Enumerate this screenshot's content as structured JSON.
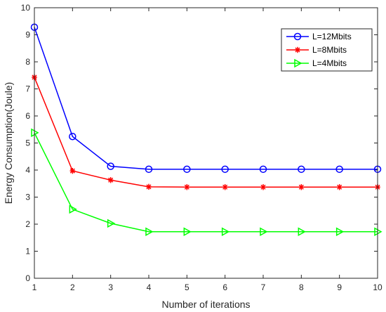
{
  "chart_data": {
    "type": "line",
    "title": "",
    "xlabel": "Number of iterations",
    "ylabel": "Energy Consumption(Joule)",
    "xlim": [
      1,
      10
    ],
    "ylim": [
      0,
      10
    ],
    "x_ticks": [
      1,
      2,
      3,
      4,
      5,
      6,
      7,
      8,
      9,
      10
    ],
    "y_ticks": [
      0,
      1,
      2,
      3,
      4,
      5,
      6,
      7,
      8,
      9,
      10
    ],
    "grid": false,
    "legend_position": "top-right",
    "x": [
      1,
      2,
      3,
      4,
      5,
      6,
      7,
      8,
      9,
      10
    ],
    "series": [
      {
        "name": "L=12Mbits",
        "color": "#0000ff",
        "marker": "circle",
        "values": [
          9.28,
          5.24,
          4.14,
          4.03,
          4.03,
          4.03,
          4.03,
          4.03,
          4.03,
          4.03
        ]
      },
      {
        "name": "L=8Mbits",
        "color": "#ff0000",
        "marker": "asterisk",
        "values": [
          7.43,
          3.97,
          3.63,
          3.38,
          3.37,
          3.37,
          3.37,
          3.37,
          3.37,
          3.37
        ]
      },
      {
        "name": "L=4Mbits",
        "color": "#00ff00",
        "marker": "triangle-right",
        "values": [
          5.38,
          2.55,
          2.03,
          1.72,
          1.72,
          1.72,
          1.72,
          1.72,
          1.72,
          1.72
        ]
      }
    ]
  }
}
